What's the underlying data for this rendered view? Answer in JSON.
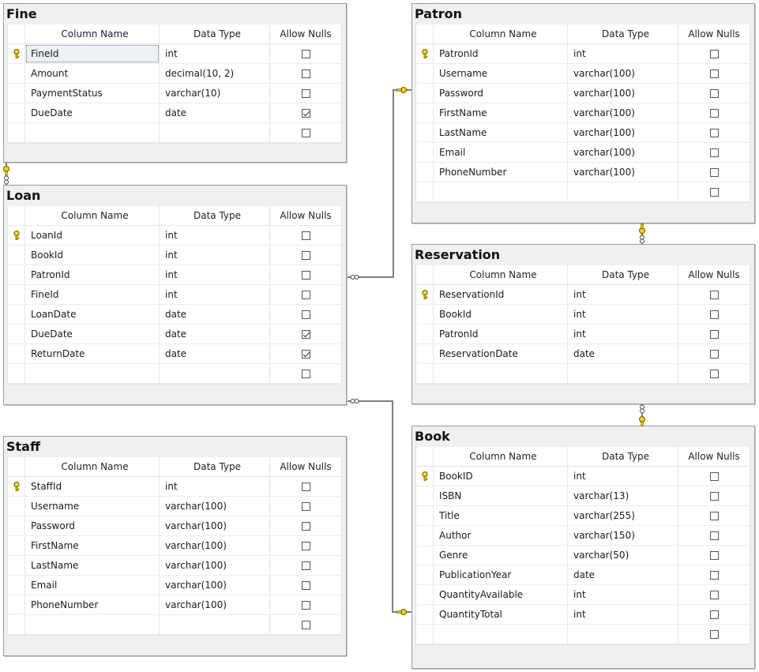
{
  "headers": {
    "column_name": "Column Name",
    "data_type": "Data Type",
    "allow_nulls": "Allow Nulls"
  },
  "tables": [
    {
      "name": "Fine",
      "rows": [
        {
          "column": "FineId",
          "type": "int",
          "nulls": false,
          "pk": true,
          "selected": true
        },
        {
          "column": "Amount",
          "type": "decimal(10, 2)",
          "nulls": false
        },
        {
          "column": "PaymentStatus",
          "type": "varchar(10)",
          "nulls": false
        },
        {
          "column": "DueDate",
          "type": "date",
          "nulls": true
        },
        {
          "column": "",
          "type": "",
          "nulls": false
        }
      ]
    },
    {
      "name": "Loan",
      "rows": [
        {
          "column": "LoanId",
          "type": "int",
          "nulls": false,
          "pk": true
        },
        {
          "column": "BookId",
          "type": "int",
          "nulls": false
        },
        {
          "column": "PatronId",
          "type": "int",
          "nulls": false
        },
        {
          "column": "FineId",
          "type": "int",
          "nulls": false
        },
        {
          "column": "LoanDate",
          "type": "date",
          "nulls": false
        },
        {
          "column": "DueDate",
          "type": "date",
          "nulls": true
        },
        {
          "column": "ReturnDate",
          "type": "date",
          "nulls": true
        },
        {
          "column": "",
          "type": "",
          "nulls": false
        }
      ]
    },
    {
      "name": "Staff",
      "rows": [
        {
          "column": "StaffId",
          "type": "int",
          "nulls": false,
          "pk": true
        },
        {
          "column": "Username",
          "type": "varchar(100)",
          "nulls": false
        },
        {
          "column": "Password",
          "type": "varchar(100)",
          "nulls": false
        },
        {
          "column": "FirstName",
          "type": "varchar(100)",
          "nulls": false
        },
        {
          "column": "LastName",
          "type": "varchar(100)",
          "nulls": false
        },
        {
          "column": "Email",
          "type": "varchar(100)",
          "nulls": false
        },
        {
          "column": "PhoneNumber",
          "type": "varchar(100)",
          "nulls": false
        },
        {
          "column": "",
          "type": "",
          "nulls": false
        }
      ]
    },
    {
      "name": "Patron",
      "rows": [
        {
          "column": "PatronId",
          "type": "int",
          "nulls": false,
          "pk": true
        },
        {
          "column": "Username",
          "type": "varchar(100)",
          "nulls": false
        },
        {
          "column": "Password",
          "type": "varchar(100)",
          "nulls": false
        },
        {
          "column": "FirstName",
          "type": "varchar(100)",
          "nulls": false
        },
        {
          "column": "LastName",
          "type": "varchar(100)",
          "nulls": false
        },
        {
          "column": "Email",
          "type": "varchar(100)",
          "nulls": false
        },
        {
          "column": "PhoneNumber",
          "type": "varchar(100)",
          "nulls": false
        },
        {
          "column": "",
          "type": "",
          "nulls": false
        }
      ]
    },
    {
      "name": "Reservation",
      "rows": [
        {
          "column": "ReservationId",
          "type": "int",
          "nulls": false,
          "pk": true
        },
        {
          "column": "BookId",
          "type": "int",
          "nulls": false
        },
        {
          "column": "PatronId",
          "type": "int",
          "nulls": false
        },
        {
          "column": "ReservationDate",
          "type": "date",
          "nulls": false
        },
        {
          "column": "",
          "type": "",
          "nulls": false
        }
      ]
    },
    {
      "name": "Book",
      "rows": [
        {
          "column": "BookID",
          "type": "int",
          "nulls": false,
          "pk": true
        },
        {
          "column": "ISBN",
          "type": "varchar(13)",
          "nulls": false
        },
        {
          "column": "Title",
          "type": "varchar(255)",
          "nulls": false
        },
        {
          "column": "Author",
          "type": "varchar(150)",
          "nulls": false
        },
        {
          "column": "Genre",
          "type": "varchar(50)",
          "nulls": false
        },
        {
          "column": "PublicationYear",
          "type": "date",
          "nulls": false
        },
        {
          "column": "QuantityAvailable",
          "type": "int",
          "nulls": false
        },
        {
          "column": "QuantityTotal",
          "type": "int",
          "nulls": false
        },
        {
          "column": "",
          "type": "",
          "nulls": false
        }
      ]
    }
  ],
  "relationships": [
    {
      "from": "Fine",
      "to": "Loan",
      "style": "one-to-many"
    },
    {
      "from": "Patron",
      "to": "Loan",
      "style": "one-to-many"
    },
    {
      "from": "Book",
      "to": "Loan",
      "style": "one-to-many"
    },
    {
      "from": "Patron",
      "to": "Reservation",
      "style": "one-to-many"
    },
    {
      "from": "Book",
      "to": "Reservation",
      "style": "one-to-many"
    }
  ],
  "colors": {
    "key": "#f2d500",
    "key_outline": "#7a6a00",
    "line": "#7a7a7a"
  }
}
